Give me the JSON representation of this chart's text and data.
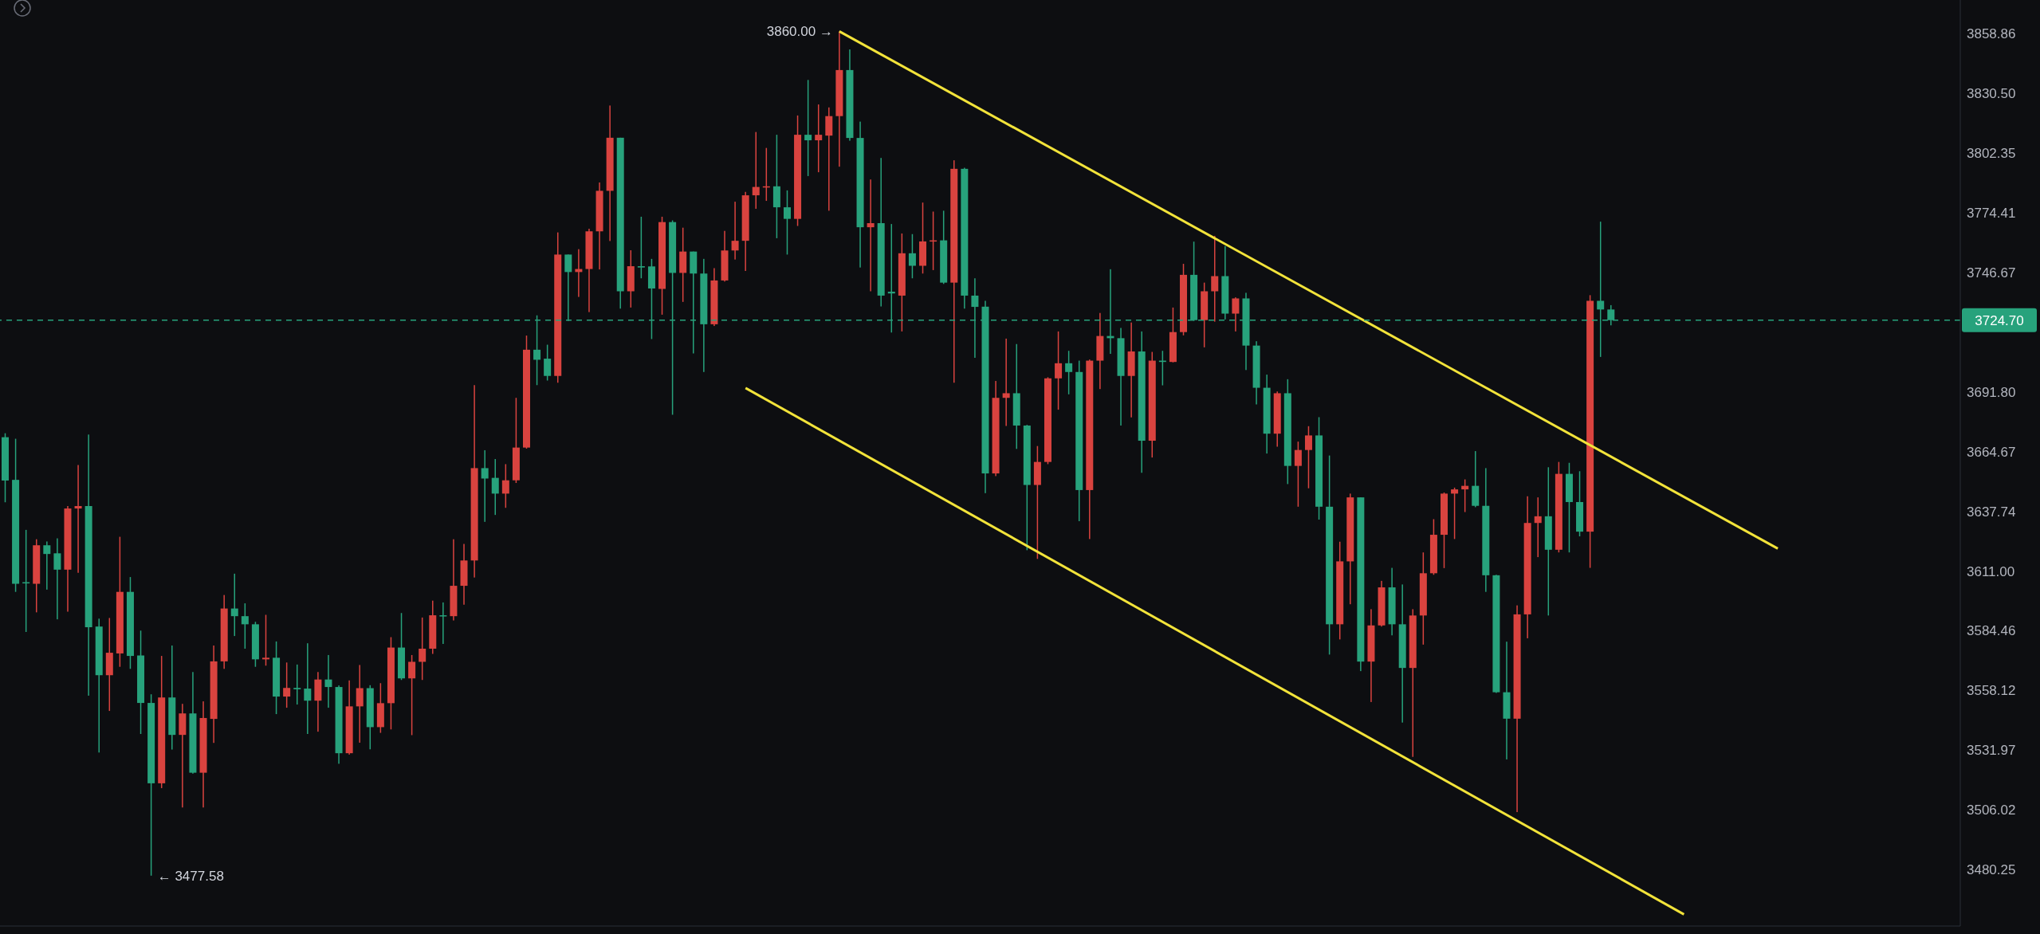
{
  "chart_data": {
    "type": "candlestick",
    "log": true,
    "tick_labels": "y",
    "ylim": [
      3456,
      3875
    ],
    "yticks": [
      3858.86,
      {
        "value": 3830.5,
        "label": "3830.50"
      },
      3802.35,
      3774.41,
      3746.67,
      {
        "value": 3691.8,
        "label": "3691.80"
      },
      3664.67,
      3637.74,
      {
        "value": 3611,
        "label": "3611.00"
      },
      3584.46,
      3558.12,
      3531.97,
      3506.02,
      3480.25
    ],
    "categories": [
      null,
      null,
      null,
      null,
      null,
      null,
      null,
      null,
      null,
      null,
      null,
      null,
      null,
      null,
      null,
      null,
      null,
      null,
      null,
      null,
      null,
      null,
      null,
      null,
      null,
      null,
      null,
      null,
      null,
      null,
      null,
      null,
      null,
      null,
      null,
      null,
      null,
      null,
      null,
      null,
      null,
      null,
      null,
      null,
      null,
      null,
      null,
      null,
      null,
      null,
      null,
      null,
      null,
      null,
      null,
      null,
      null,
      null,
      null,
      null,
      null,
      null,
      null,
      null,
      null,
      null,
      null,
      null,
      null,
      null,
      null,
      null,
      null,
      null,
      null,
      null,
      null,
      null,
      null,
      null,
      null,
      null,
      null,
      null,
      null,
      null,
      null,
      null,
      null,
      null,
      null,
      null,
      null,
      null,
      null,
      null,
      null,
      null,
      null,
      null,
      null,
      null,
      null,
      null,
      null,
      null,
      null,
      null,
      null,
      null,
      null,
      null,
      null,
      null,
      null,
      null,
      null,
      null,
      null,
      null,
      null,
      null,
      null,
      null,
      null,
      null,
      null,
      null,
      null,
      null,
      null,
      null,
      null,
      null,
      null,
      null,
      null,
      null,
      null,
      null,
      null,
      null,
      null,
      null,
      null,
      null,
      null,
      null,
      null,
      null,
      null,
      null,
      null,
      null,
      null,
      null,
      null,
      null,
      null,
      null,
      null,
      null,
      null,
      null,
      null,
      null,
      null,
      null,
      null,
      null,
      null,
      null,
      null,
      null,
      null,
      null,
      null,
      null,
      null,
      null,
      null,
      null,
      null,
      null,
      null,
      null,
      null,
      null
    ],
    "ohlc": [
      [
        3671.2,
        3673,
        3641.8,
        3651.6
      ],
      [
        3651.9,
        3670.5,
        3601.7,
        3605.3
      ],
      [
        3606,
        3629.4,
        3583.9,
        3605.5
      ],
      [
        3605.3,
        3625.2,
        3592.6,
        3622.5
      ],
      [
        3622.5,
        3624.2,
        3602.7,
        3618.6
      ],
      [
        3618.9,
        3625.6,
        3589.5,
        3611.6
      ],
      [
        3611.6,
        3640.1,
        3592.9,
        3639
      ],
      [
        3639,
        3658.6,
        3610.2,
        3640.1
      ],
      [
        3640.1,
        3672.4,
        3555.8,
        3586
      ],
      [
        3586.3,
        3589.8,
        3530.9,
        3564.8
      ],
      [
        3564.8,
        3590.1,
        3549.1,
        3574.7
      ],
      [
        3574.4,
        3626.3,
        3568.5,
        3601.7
      ],
      [
        3601.7,
        3608.3,
        3567.6,
        3573.3
      ],
      [
        3573.5,
        3584.5,
        3539,
        3552.6
      ],
      [
        3552.6,
        3556.4,
        3477.58,
        3517.5
      ],
      [
        3517.5,
        3573.3,
        3515.4,
        3555
      ],
      [
        3555,
        3577.9,
        3532.2,
        3538.6
      ],
      [
        3538.6,
        3552.2,
        3507,
        3548
      ],
      [
        3548,
        3566.2,
        3521.7,
        3522.1
      ],
      [
        3522.1,
        3553.3,
        3507,
        3546
      ],
      [
        3545.6,
        3577.9,
        3535.1,
        3570.9
      ],
      [
        3570.9,
        3600.3,
        3567.6,
        3594.3
      ],
      [
        3594.3,
        3609.8,
        3582.1,
        3590.9
      ],
      [
        3590.9,
        3596.6,
        3576.5,
        3587.3
      ],
      [
        3587.3,
        3588.4,
        3568.5,
        3571.8
      ],
      [
        3571.8,
        3591.5,
        3569,
        3572.5
      ],
      [
        3572.5,
        3579.7,
        3547.7,
        3555.4
      ],
      [
        3555.4,
        3570.4,
        3550.5,
        3559.2
      ],
      [
        3559.2,
        3569.5,
        3551.9,
        3558.6
      ],
      [
        3558.9,
        3578.9,
        3539,
        3553.6
      ],
      [
        3553.6,
        3566.2,
        3540,
        3562.9
      ],
      [
        3562.9,
        3573.7,
        3550.5,
        3559.6
      ],
      [
        3559.6,
        3560.3,
        3526,
        3530.6
      ],
      [
        3530.6,
        3562.5,
        3530,
        3551.1
      ],
      [
        3551.1,
        3569.3,
        3535.2,
        3559.1
      ],
      [
        3559.1,
        3560.4,
        3532.3,
        3542
      ],
      [
        3542,
        3561.3,
        3539.5,
        3552.5
      ],
      [
        3552.5,
        3581.6,
        3541,
        3577
      ],
      [
        3577,
        3592.3,
        3562.7,
        3563.4
      ],
      [
        3563.4,
        3573.7,
        3538.5,
        3570.7
      ],
      [
        3570.7,
        3590.3,
        3562.7,
        3576.5
      ],
      [
        3576.5,
        3597.8,
        3574.2,
        3591.3
      ],
      [
        3591.3,
        3597,
        3578.6,
        3590.9
      ],
      [
        3590.9,
        3625.2,
        3589,
        3604.4
      ],
      [
        3604.4,
        3623.1,
        3596,
        3615.7
      ],
      [
        3615.7,
        3694.9,
        3608.1,
        3657.2
      ],
      [
        3657.2,
        3665.3,
        3633,
        3652.5
      ],
      [
        3652.8,
        3661.3,
        3636.1,
        3645.7
      ],
      [
        3645.7,
        3659,
        3639.3,
        3651.7
      ],
      [
        3651.7,
        3689.1,
        3650.5,
        3666.5
      ],
      [
        3666.5,
        3717.6,
        3666,
        3711.1
      ],
      [
        3711.1,
        3726.9,
        3694.9,
        3706.5
      ],
      [
        3707,
        3713.4,
        3697,
        3699.1
      ],
      [
        3699.1,
        3765.3,
        3696,
        3755
      ],
      [
        3755,
        3755,
        3724.3,
        3746.9
      ],
      [
        3746.9,
        3757.5,
        3735.4,
        3748.3
      ],
      [
        3748.3,
        3767,
        3728.4,
        3765.8
      ],
      [
        3765.8,
        3788.6,
        3748.1,
        3784.7
      ],
      [
        3784.7,
        3824.8,
        3761.3,
        3809.6
      ],
      [
        3809.6,
        3809.6,
        3730,
        3738
      ],
      [
        3738,
        3757,
        3730.5,
        3749.6
      ],
      [
        3749.6,
        3772.6,
        3744,
        3749
      ],
      [
        3749.5,
        3753,
        3716,
        3739.3
      ],
      [
        3739.1,
        3772.6,
        3727.2,
        3770.1
      ],
      [
        3770.1,
        3770.9,
        3681.4,
        3746.5
      ],
      [
        3746.5,
        3767.5,
        3733.1,
        3756.4
      ],
      [
        3756.4,
        3756.4,
        3709.4,
        3746.2
      ],
      [
        3746.2,
        3753,
        3700.9,
        3722.8
      ],
      [
        3722.8,
        3748.7,
        3722,
        3743
      ],
      [
        3743,
        3766,
        3742.5,
        3756.9
      ],
      [
        3756.9,
        3779.6,
        3752.7,
        3761.4
      ],
      [
        3761.4,
        3784.2,
        3747.4,
        3782.6
      ],
      [
        3782.6,
        3812.3,
        3776.3,
        3786.5
      ],
      [
        3786.5,
        3804.8,
        3780,
        3786.8
      ],
      [
        3786.8,
        3811,
        3762.6,
        3777
      ],
      [
        3777,
        3784.9,
        3755,
        3771.6
      ],
      [
        3771.6,
        3820.1,
        3768.3,
        3811
      ],
      [
        3811,
        3836.9,
        3791.6,
        3808.4
      ],
      [
        3808.4,
        3825.3,
        3793.4,
        3811
      ],
      [
        3810.6,
        3823.9,
        3775.4,
        3819.8
      ],
      [
        3819.8,
        3860,
        3796,
        3841.6
      ],
      [
        3841.6,
        3851.4,
        3808.2,
        3809.5
      ],
      [
        3809.5,
        3817.2,
        3749,
        3767.7
      ],
      [
        3767.7,
        3790,
        3738,
        3769.6
      ],
      [
        3769.6,
        3800.1,
        3731,
        3736
      ],
      [
        3737.8,
        3769.2,
        3719,
        3737
      ],
      [
        3736,
        3764.8,
        3719.5,
        3755.6
      ],
      [
        3755.6,
        3764.5,
        3744,
        3749.8
      ],
      [
        3749.8,
        3779.2,
        3746.2,
        3761.1
      ],
      [
        3761.1,
        3775,
        3747.8,
        3761.6
      ],
      [
        3761.6,
        3775.4,
        3741.4,
        3742
      ],
      [
        3742,
        3799,
        3696,
        3795
      ],
      [
        3795,
        3795.5,
        3730,
        3736
      ],
      [
        3736,
        3744,
        3707.4,
        3730.8
      ],
      [
        3730.9,
        3733.6,
        3645.9,
        3654.8
      ],
      [
        3654.8,
        3696.8,
        3653.6,
        3689.1
      ],
      [
        3689.1,
        3716.2,
        3676.3,
        3691.2
      ],
      [
        3691.2,
        3713.7,
        3665.9,
        3676.5
      ],
      [
        3676.5,
        3676.8,
        3620.3,
        3649.6
      ],
      [
        3649.6,
        3667.2,
        3616.4,
        3660
      ],
      [
        3660,
        3698.5,
        3659,
        3698
      ],
      [
        3698,
        3719.5,
        3683.7,
        3704.9
      ],
      [
        3704.9,
        3710.6,
        3690.7,
        3700.9
      ],
      [
        3700.9,
        3706.1,
        3633.3,
        3647.3
      ],
      [
        3647.3,
        3706.6,
        3625.3,
        3706.1
      ],
      [
        3706.1,
        3728,
        3693.1,
        3717.4
      ],
      [
        3717.4,
        3748.2,
        3709.2,
        3716.4
      ],
      [
        3716.4,
        3721.1,
        3676.5,
        3699.1
      ],
      [
        3699.1,
        3723.6,
        3680.2,
        3710.3
      ],
      [
        3710.3,
        3719.5,
        3655.1,
        3669.6
      ],
      [
        3669.6,
        3710.1,
        3662,
        3706.1
      ],
      [
        3706.1,
        3710.6,
        3694.8,
        3705.5
      ],
      [
        3705.5,
        3730.5,
        3705.3,
        3719.2
      ],
      [
        3719.2,
        3750.7,
        3717.7,
        3745.6
      ],
      [
        3745.6,
        3761,
        3724.3,
        3724.7
      ],
      [
        3724.7,
        3742,
        3712.2,
        3738
      ],
      [
        3738,
        3763.7,
        3724,
        3745
      ],
      [
        3745,
        3758.9,
        3725,
        3727.7
      ],
      [
        3727.7,
        3735.2,
        3719.5,
        3734.7
      ],
      [
        3734.7,
        3737.3,
        3701.8,
        3713
      ],
      [
        3713,
        3715,
        3686.1,
        3693.7
      ],
      [
        3693.7,
        3699.7,
        3663.8,
        3672.8
      ],
      [
        3672.8,
        3692,
        3666.9,
        3691.2
      ],
      [
        3691.2,
        3697.6,
        3650,
        3658.2
      ],
      [
        3658.2,
        3669.2,
        3639.8,
        3665.4
      ],
      [
        3665.4,
        3676.2,
        3648.1,
        3672
      ],
      [
        3672,
        3680.3,
        3634,
        3639.8
      ],
      [
        3639.8,
        3662.9,
        3573.9,
        3587.3
      ],
      [
        3587.3,
        3624.1,
        3580.6,
        3615.3
      ],
      [
        3615.3,
        3645.7,
        3596.2,
        3644
      ],
      [
        3644,
        3644,
        3566.6,
        3570.8
      ],
      [
        3570.8,
        3594,
        3553,
        3586.8
      ],
      [
        3586.8,
        3606.6,
        3586.3,
        3603.7
      ],
      [
        3603.7,
        3612.4,
        3582.4,
        3587.3
      ],
      [
        3587.3,
        3605,
        3544,
        3568
      ],
      [
        3568,
        3594,
        3529,
        3591.2
      ],
      [
        3591.2,
        3619.3,
        3578.3,
        3610
      ],
      [
        3610,
        3634.2,
        3609.3,
        3627.2
      ],
      [
        3627.2,
        3646.2,
        3612.3,
        3645.7
      ],
      [
        3645.7,
        3648.4,
        3625.3,
        3647.6
      ],
      [
        3647.6,
        3652.1,
        3637.4,
        3649.2
      ],
      [
        3649.2,
        3664.9,
        3639.6,
        3640.2
      ],
      [
        3640.2,
        3657.2,
        3601.7,
        3609.1
      ],
      [
        3609.1,
        3609.3,
        3557,
        3557.3
      ],
      [
        3557.3,
        3579.6,
        3527.9,
        3545.7
      ],
      [
        3545.7,
        3595.7,
        3505,
        3591.7
      ],
      [
        3591.7,
        3644.5,
        3581.1,
        3632.5
      ],
      [
        3632.5,
        3644,
        3617.2,
        3635.5
      ],
      [
        3635.5,
        3657.6,
        3591.2,
        3620.5
      ],
      [
        3620.5,
        3660,
        3619.3,
        3654.6
      ],
      [
        3654.6,
        3659.6,
        3619.3,
        3641.9
      ],
      [
        3641.9,
        3655.8,
        3626.5,
        3628.6
      ],
      [
        3628.6,
        3736.2,
        3612.4,
        3733.6
      ],
      [
        3733.6,
        3770.3,
        3707.8,
        3729.6
      ],
      [
        3729.6,
        3731.6,
        3722.3,
        3724.7
      ],
      null,
      null,
      null,
      null,
      null,
      null,
      null,
      null,
      null,
      null,
      null,
      null,
      null,
      null,
      null,
      null,
      null,
      null,
      null,
      null,
      null,
      null,
      null,
      null,
      null,
      null,
      null,
      null,
      null,
      null,
      null,
      null,
      null
    ],
    "colors": [
      "#27a27c",
      "#27a27c",
      "#27a27c",
      "#d9433f",
      "#27a27c",
      "#27a27c",
      "#d9433f",
      "#d9433f",
      "#27a27c",
      "#27a27c",
      "#d9433f",
      "#d9433f",
      "#27a27c",
      "#27a27c",
      "#27a27c",
      "#d9433f",
      "#27a27c",
      "#d9433f",
      "#27a27c",
      "#d9433f",
      "#d9433f",
      "#d9433f",
      "#27a27c",
      "#27a27c",
      "#27a27c",
      "#d9433f",
      "#27a27c",
      "#d9433f",
      "#27a27c",
      "#27a27c",
      "#d9433f",
      "#27a27c",
      "#27a27c",
      "#d9433f",
      "#d9433f",
      "#27a27c",
      "#d9433f",
      "#d9433f",
      "#27a27c",
      "#d9433f",
      "#d9433f",
      "#d9433f",
      "#27a27c",
      "#d9433f",
      "#d9433f",
      "#d9433f",
      "#27a27c",
      "#27a27c",
      "#d9433f",
      "#d9433f",
      "#d9433f",
      "#27a27c",
      "#27a27c",
      "#d9433f",
      "#27a27c",
      "#d9433f",
      "#d9433f",
      "#d9433f",
      "#d9433f",
      "#27a27c",
      "#d9433f",
      "#27a27c",
      "#27a27c",
      "#d9433f",
      "#27a27c",
      "#d9433f",
      "#27a27c",
      "#27a27c",
      "#d9433f",
      "#d9433f",
      "#d9433f",
      "#d9433f",
      "#d9433f",
      "#d9433f",
      "#27a27c",
      "#27a27c",
      "#d9433f",
      "#27a27c",
      "#d9433f",
      "#d9433f",
      "#d9433f",
      "#27a27c",
      "#27a27c",
      "#d9433f",
      "#27a27c",
      "#27a27c",
      "#d9433f",
      "#27a27c",
      "#d9433f",
      "#d9433f",
      "#27a27c",
      "#d9433f",
      "#27a27c",
      "#27a27c",
      "#27a27c",
      "#d9433f",
      "#d9433f",
      "#27a27c",
      "#27a27c",
      "#d9433f",
      "#d9433f",
      "#d9433f",
      "#27a27c",
      "#27a27c",
      "#d9433f",
      "#d9433f",
      "#27a27c",
      "#27a27c",
      "#d9433f",
      "#27a27c",
      "#d9433f",
      "#27a27c",
      "#d9433f",
      "#d9433f",
      "#27a27c",
      "#d9433f",
      "#d9433f",
      "#27a27c",
      "#d9433f",
      "#27a27c",
      "#27a27c",
      "#27a27c",
      "#d9433f",
      "#27a27c",
      "#d9433f",
      "#d9433f",
      "#27a27c",
      "#27a27c",
      "#d9433f",
      "#d9433f",
      "#27a27c",
      "#d9433f",
      "#d9433f",
      "#27a27c",
      "#27a27c",
      "#d9433f",
      "#d9433f",
      "#d9433f",
      "#d9433f",
      "#d9433f",
      "#d9433f",
      "#27a27c",
      "#27a27c",
      "#27a27c",
      "#27a27c",
      "#d9433f",
      "#d9433f",
      "#d9433f",
      "#27a27c",
      "#d9433f",
      "#27a27c",
      "#27a27c",
      "#d9433f",
      "#27a27c",
      "#27a27c",
      null,
      null,
      null,
      null,
      null,
      null,
      null,
      null,
      null,
      null,
      null,
      null,
      null,
      null,
      null,
      null,
      null,
      null,
      null,
      null,
      null,
      null,
      null,
      null,
      null,
      null,
      null,
      null,
      null,
      null,
      null,
      null,
      null
    ],
    "series": [
      {
        "type": "line",
        "color": "#f2e33a",
        "values": [
          null,
          null,
          null,
          null,
          null,
          null,
          null,
          null,
          null,
          null,
          null,
          null,
          null,
          null,
          null,
          null,
          null,
          null,
          null,
          null,
          null,
          null,
          null,
          null,
          null,
          null,
          null,
          null,
          null,
          null,
          null,
          null,
          null,
          null,
          null,
          null,
          null,
          null,
          null,
          null,
          null,
          null,
          null,
          null,
          null,
          null,
          null,
          null,
          null,
          null,
          null,
          null,
          null,
          null,
          null,
          null,
          null,
          null,
          null,
          null,
          null,
          null,
          null,
          null,
          null,
          null,
          null,
          null,
          null,
          null,
          null,
          null,
          null,
          null,
          null,
          null,
          null,
          null,
          null,
          null,
          3860,
          null,
          null,
          null,
          null,
          null,
          null,
          null,
          null,
          null,
          null,
          null,
          null,
          null,
          null,
          null,
          null,
          null,
          null,
          null,
          null,
          null,
          null,
          null,
          null,
          null,
          null,
          null,
          null,
          null,
          null,
          null,
          null,
          null,
          null,
          null,
          null,
          null,
          null,
          null,
          null,
          null,
          null,
          null,
          null,
          null,
          null,
          null,
          null,
          null,
          null,
          null,
          null,
          null,
          null,
          null,
          null,
          null,
          null,
          null,
          null,
          null,
          null,
          null,
          null,
          null,
          null,
          null,
          null,
          null,
          null,
          null,
          null,
          null,
          null,
          null,
          null,
          null,
          null,
          null,
          null,
          null,
          null,
          null,
          null,
          null,
          null,
          null,
          null,
          null,
          3621,
          null,
          null,
          null,
          null,
          null,
          null,
          null,
          null,
          null,
          null,
          null,
          null,
          null,
          null,
          null,
          null,
          null
        ]
      },
      {
        "type": "line",
        "color": "#f2e33a",
        "values": [
          null,
          null,
          null,
          null,
          null,
          null,
          null,
          null,
          null,
          null,
          null,
          null,
          null,
          null,
          null,
          null,
          null,
          null,
          null,
          null,
          null,
          null,
          null,
          null,
          null,
          null,
          null,
          null,
          null,
          null,
          null,
          null,
          null,
          null,
          null,
          null,
          null,
          null,
          null,
          null,
          null,
          null,
          null,
          null,
          null,
          null,
          null,
          null,
          null,
          null,
          null,
          null,
          null,
          null,
          null,
          null,
          null,
          null,
          null,
          null,
          null,
          null,
          null,
          null,
          null,
          null,
          null,
          null,
          null,
          null,
          null,
          3693.6,
          null,
          null,
          null,
          null,
          null,
          null,
          null,
          null,
          null,
          null,
          null,
          null,
          null,
          null,
          null,
          null,
          null,
          null,
          null,
          null,
          null,
          null,
          null,
          null,
          null,
          null,
          null,
          null,
          null,
          null,
          null,
          null,
          null,
          null,
          null,
          null,
          null,
          null,
          null,
          null,
          null,
          null,
          null,
          null,
          null,
          null,
          null,
          null,
          null,
          null,
          null,
          null,
          null,
          null,
          null,
          null,
          null,
          null,
          null,
          null,
          null,
          null,
          null,
          null,
          null,
          null,
          null,
          null,
          null,
          null,
          null,
          null,
          null,
          null,
          null,
          null,
          null,
          null,
          null,
          null,
          null,
          null,
          null,
          null,
          null,
          null,
          null,
          null,
          null,
          3461,
          null,
          null,
          null,
          null,
          null,
          null,
          null,
          null,
          null,
          null,
          null,
          null,
          null,
          null,
          null,
          null,
          null,
          null,
          null,
          null,
          null,
          null,
          null,
          null,
          null,
          null
        ]
      }
    ],
    "ref_lines": [
      {
        "axis": "y",
        "value": 3724.7,
        "label": "3724.70",
        "color": "#27a27c",
        "line_style": "dashed"
      }
    ],
    "annotations": [
      "3860.00 →",
      "← 3477.58"
    ]
  }
}
